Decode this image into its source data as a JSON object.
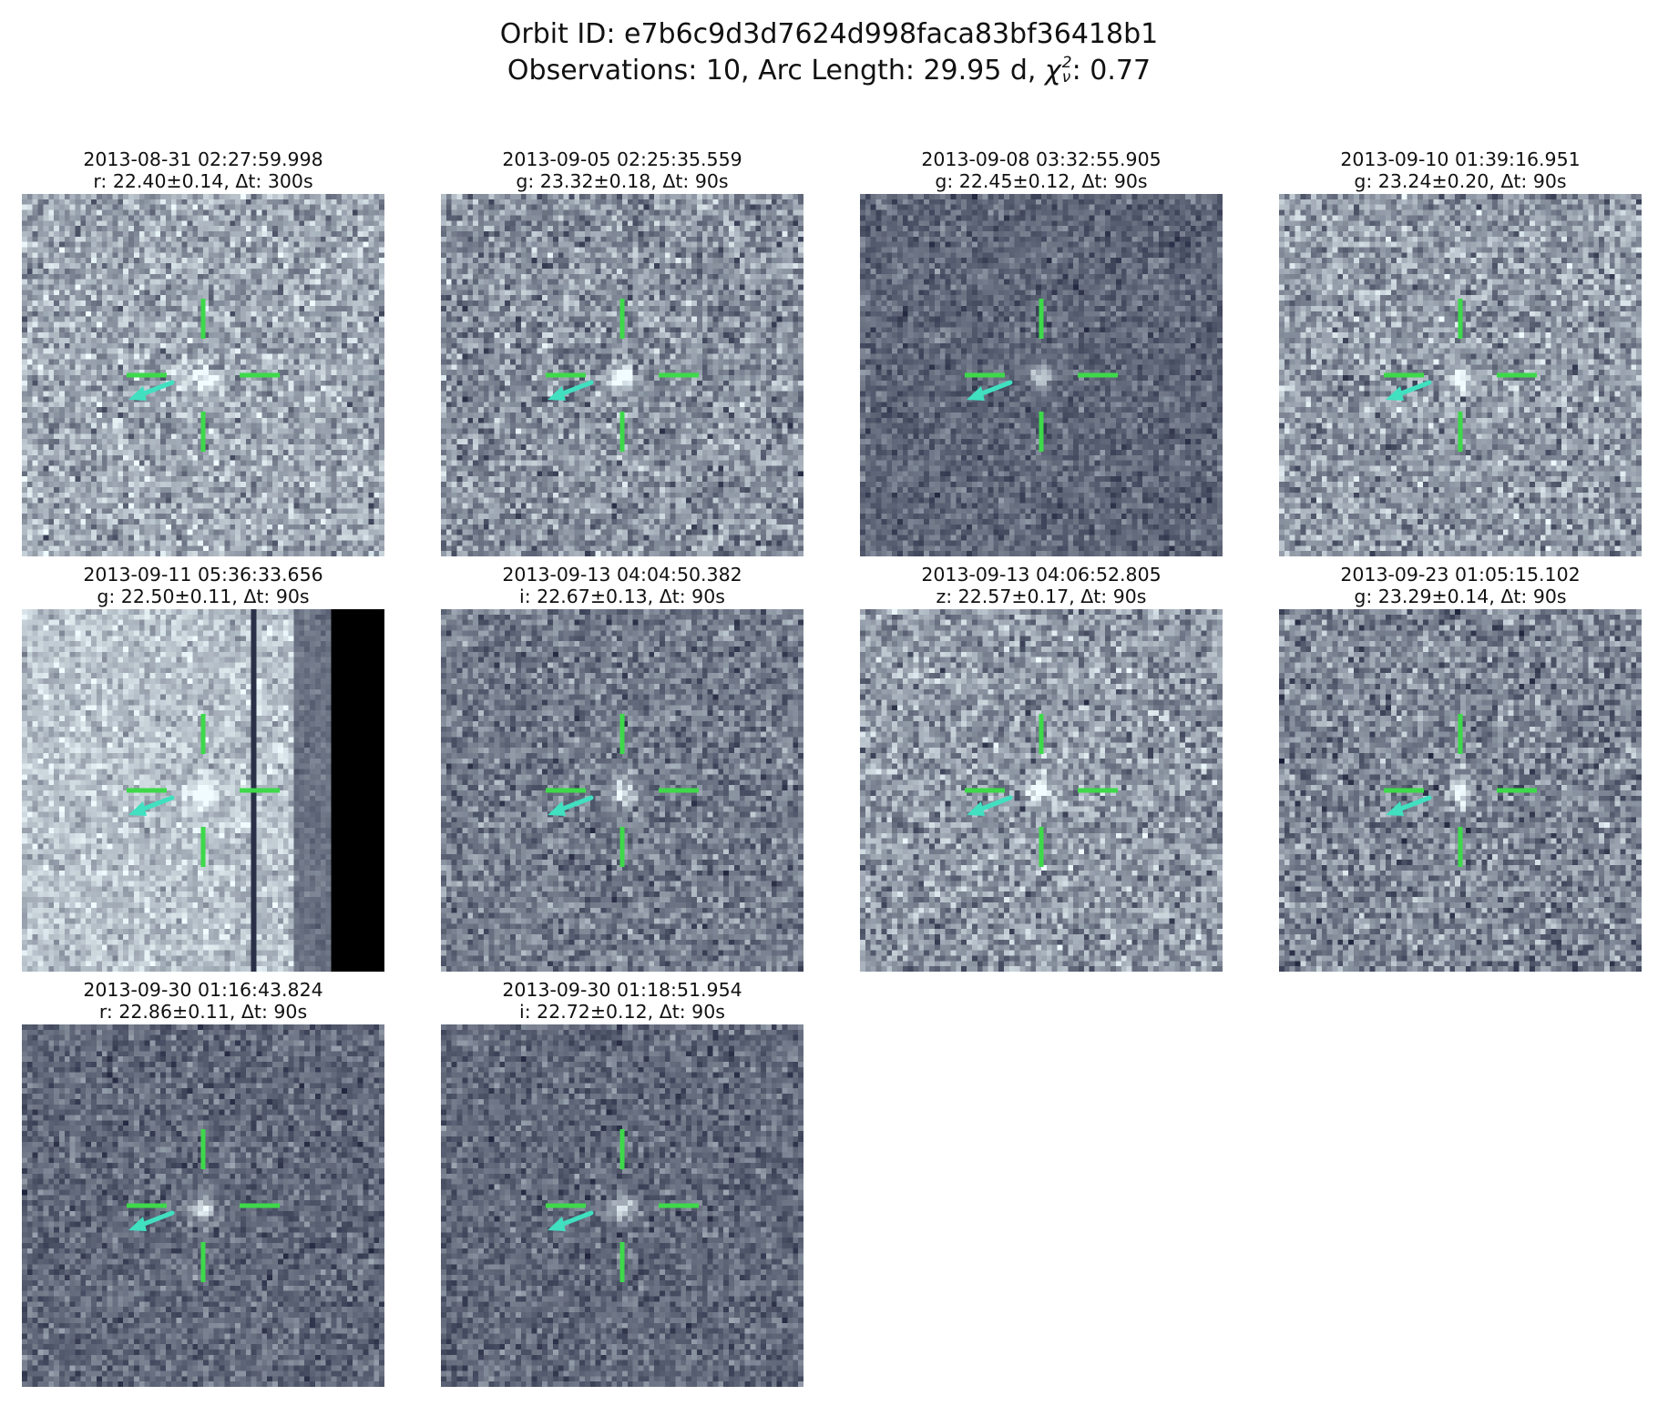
{
  "header": {
    "orbit_label": "Orbit ID: e7b6c9d3d7624d998faca83bf36418b1",
    "obs_prefix": "Observations: 10, Arc Length: 29.95 d, ",
    "chi_symbol": "χ",
    "chi_sup": "2",
    "chi_sub": "ν",
    "chi_value": ": 0.77"
  },
  "colors": {
    "crosshair": "#3ed94a",
    "arrow": "#40e0c0",
    "background": "#ffffff"
  },
  "panels": [
    {
      "timestamp": "2013-08-31 02:27:59.998",
      "photometry": "r: 22.40±0.14, Δt: 300s",
      "brightness": 0.62,
      "contrast": 0.3,
      "bright_band": false
    },
    {
      "timestamp": "2013-09-05 02:25:35.559",
      "photometry": "g: 23.32±0.18, Δt: 90s",
      "brightness": 0.52,
      "contrast": 0.3,
      "bright_band": false
    },
    {
      "timestamp": "2013-09-08 03:32:55.905",
      "photometry": "g: 22.45±0.12, Δt: 90s",
      "brightness": 0.33,
      "contrast": 0.18,
      "bright_band": false
    },
    {
      "timestamp": "2013-09-10 01:39:16.951",
      "photometry": "g: 23.24±0.20, Δt: 90s",
      "brightness": 0.56,
      "contrast": 0.3,
      "bright_band": false
    },
    {
      "timestamp": "2013-09-11 05:36:33.656",
      "photometry": "g: 22.50±0.11, Δt: 90s",
      "brightness": 0.74,
      "contrast": 0.22,
      "bright_band": true
    },
    {
      "timestamp": "2013-09-13 04:04:50.382",
      "photometry": "i: 22.67±0.13, Δt: 90s",
      "brightness": 0.42,
      "contrast": 0.24,
      "bright_band": false
    },
    {
      "timestamp": "2013-09-13 04:06:52.805",
      "photometry": "z: 22.57±0.17, Δt: 90s",
      "brightness": 0.55,
      "contrast": 0.3,
      "bright_band": false
    },
    {
      "timestamp": "2013-09-23 01:05:15.102",
      "photometry": "g: 23.29±0.14, Δt: 90s",
      "brightness": 0.47,
      "contrast": 0.3,
      "bright_band": false
    },
    {
      "timestamp": "2013-09-30 01:16:43.824",
      "photometry": "r: 22.86±0.11, Δt: 90s",
      "brightness": 0.34,
      "contrast": 0.2,
      "bright_band": false
    },
    {
      "timestamp": "2013-09-30 01:18:51.954",
      "photometry": "i: 22.72±0.12, Δt: 90s",
      "brightness": 0.34,
      "contrast": 0.2,
      "bright_band": false
    }
  ]
}
